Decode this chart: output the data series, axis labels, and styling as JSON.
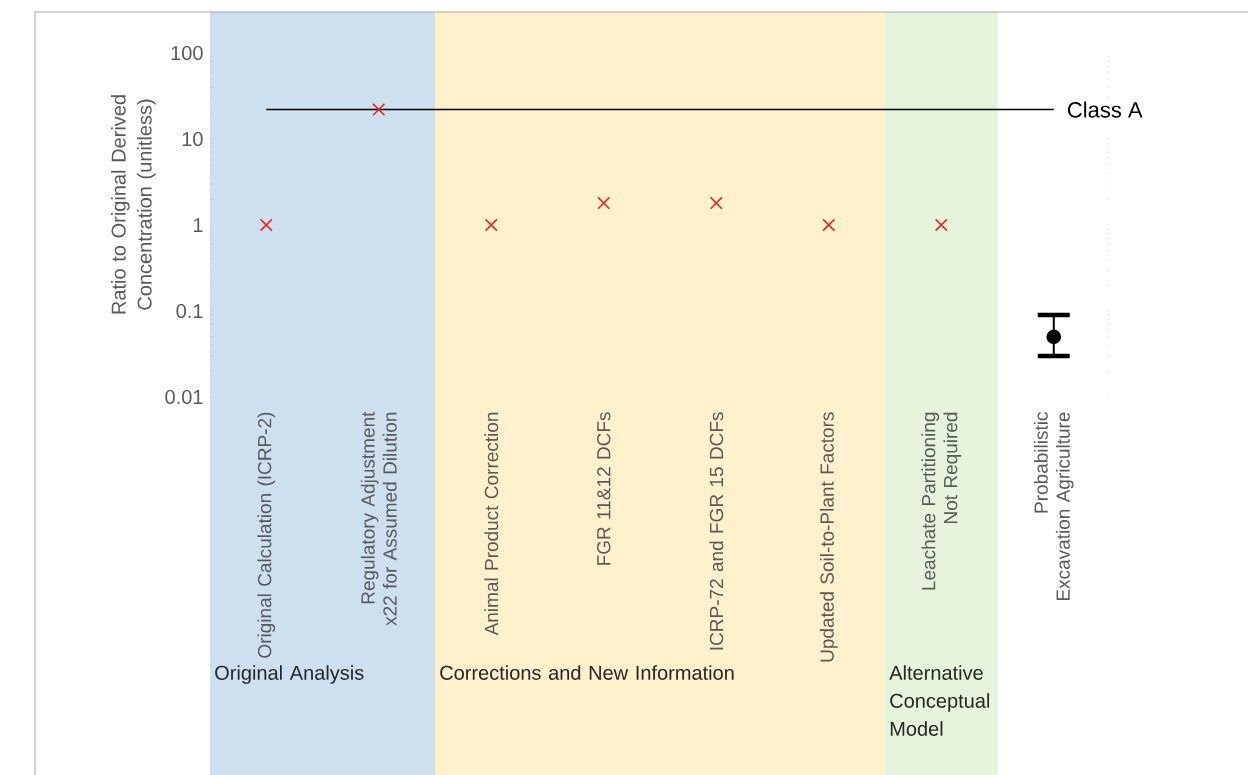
{
  "chart_data": {
    "type": "scatter",
    "ylabel": "Ratio to Original Derived Concentration  (unitless)",
    "categories": [
      "Original Calculation (ICRP-2)",
      "Regulatory Adjustment x22 for Assumed Dilution",
      "Animal Product Correction",
      "FGR 11&12 DCFs",
      "ICRP-72 and FGR 15 DCFs",
      "Updated Soil-to-Plant Factors",
      "Leachate Partitioning Not Required",
      "Probabilistic Excavation Agriculture"
    ],
    "series": [
      {
        "color": "#e8251f",
        "marker": "cross",
        "values": [
          1,
          22,
          1,
          1.8,
          1.8,
          1,
          1,
          null
        ]
      },
      {
        "color": "#000000",
        "marker": "circle",
        "values": [
          null,
          null,
          null,
          null,
          null,
          null,
          null,
          0.05
        ],
        "errors": [
          null,
          null,
          null,
          null,
          null,
          null,
          null,
          [
            0.03,
            0.09
          ]
        ]
      }
    ],
    "log": "y",
    "ylim": [
      0.01,
      300
    ],
    "yticks": [
      0.01,
      0.1,
      1,
      10,
      100
    ],
    "ref_lines": [
      {
        "axis": "y",
        "value": 22,
        "label": "Class A",
        "color": "#000000"
      }
    ],
    "bands": [
      {
        "axis": "x",
        "from": "Original Calculation (ICRP-2)",
        "to": "Regulatory Adjustment x22 for Assumed Dilution",
        "color": "#cce0f0"
      },
      {
        "axis": "x",
        "from": "Animal Product Correction",
        "to": "Updated Soil-to-Plant Factors",
        "color": "#fff1cc"
      },
      {
        "axis": "x",
        "from": "Leachate Partitioning Not Required",
        "to": "Leachate Partitioning Not Required",
        "color": "#e6f4db"
      }
    ],
    "annotations": [
      "Original Analysis",
      "Corrections and New Information",
      "Alternative Conceptual Model"
    ]
  }
}
